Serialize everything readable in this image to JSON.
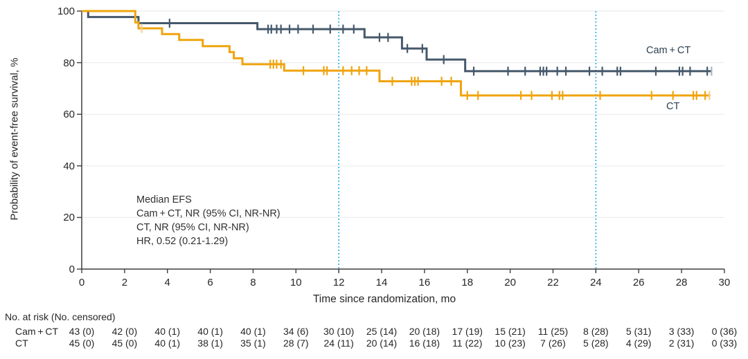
{
  "chart_data": {
    "type": "line",
    "subtype": "kaplan-meier-step",
    "title": "",
    "xlabel": "Time since randomization, mo",
    "ylabel": "Probability of event-free survival, %",
    "xlim": [
      0,
      30
    ],
    "ylim": [
      0,
      100
    ],
    "x_ticks": [
      0,
      2,
      4,
      6,
      8,
      10,
      12,
      14,
      16,
      18,
      20,
      22,
      24,
      26,
      28,
      30
    ],
    "y_ticks": [
      0,
      20,
      40,
      60,
      80,
      100
    ],
    "grid": "horizontal-light",
    "legend_position": "right-of-curves",
    "reference_lines_x": [
      12,
      24
    ],
    "annotation": {
      "lines": [
        "Median EFS",
        "Cam + CT, NR (95% CI, NR-NR)",
        "CT, NR (95% CI, NR-NR)",
        "HR, 0.52 (0.21-1.29)"
      ]
    },
    "series": [
      {
        "name": "Cam + CT",
        "color": "#45586B",
        "light_color": "#A9B6C0",
        "end_month": 29.4,
        "steps": [
          [
            0,
            100
          ],
          [
            0.3,
            97.7
          ],
          [
            2.65,
            95.3
          ],
          [
            8.2,
            93
          ],
          [
            13.2,
            89.8
          ],
          [
            14.95,
            85.5
          ],
          [
            16.1,
            81.2
          ],
          [
            17.9,
            76.7
          ]
        ],
        "censor_marks": [
          [
            4.1,
            95.3
          ],
          [
            8.7,
            93
          ],
          [
            8.85,
            93
          ],
          [
            9.1,
            93
          ],
          [
            9.3,
            93
          ],
          [
            9.7,
            93
          ],
          [
            10.1,
            93
          ],
          [
            10.8,
            93
          ],
          [
            11.6,
            93
          ],
          [
            12.2,
            93
          ],
          [
            12.7,
            93
          ],
          [
            13.9,
            89.8
          ],
          [
            14.3,
            89.8
          ],
          [
            15.2,
            85.5
          ],
          [
            15.9,
            85.5
          ],
          [
            16.9,
            81.2
          ],
          [
            18.3,
            76.7
          ],
          [
            19.9,
            76.7
          ],
          [
            20.7,
            76.7
          ],
          [
            21.4,
            76.7
          ],
          [
            21.55,
            76.7
          ],
          [
            21.7,
            76.7
          ],
          [
            22.2,
            76.7
          ],
          [
            22.6,
            76.7
          ],
          [
            23.7,
            76.7
          ],
          [
            24.3,
            76.7
          ],
          [
            25.0,
            76.7
          ],
          [
            25.15,
            76.7
          ],
          [
            26.8,
            76.7
          ],
          [
            27.9,
            76.7
          ],
          [
            28.05,
            76.7
          ],
          [
            28.4,
            76.7
          ],
          [
            29.2,
            76.7
          ]
        ],
        "censor_marks_light": [
          [
            29.4,
            76.7
          ]
        ]
      },
      {
        "name": "CT",
        "color": "#EFA40E",
        "light_color": "#F8CE8B",
        "end_month": 29.35,
        "steps": [
          [
            0,
            100
          ],
          [
            2.5,
            95.6
          ],
          [
            2.65,
            93.3
          ],
          [
            3.75,
            91.1
          ],
          [
            4.55,
            88.8
          ],
          [
            5.65,
            86.4
          ],
          [
            6.9,
            84.1
          ],
          [
            7.1,
            81.7
          ],
          [
            7.5,
            79.4
          ],
          [
            9.45,
            76.9
          ],
          [
            13.9,
            72.8
          ],
          [
            17.7,
            67.3
          ]
        ],
        "censor_marks": [
          [
            8.8,
            79.4
          ],
          [
            8.95,
            79.4
          ],
          [
            9.1,
            79.4
          ],
          [
            9.3,
            79.4
          ],
          [
            10.35,
            76.9
          ],
          [
            11.3,
            76.9
          ],
          [
            11.45,
            76.9
          ],
          [
            12.2,
            76.9
          ],
          [
            12.6,
            76.9
          ],
          [
            12.95,
            76.9
          ],
          [
            13.3,
            76.9
          ],
          [
            14.5,
            72.8
          ],
          [
            15.4,
            72.8
          ],
          [
            15.55,
            72.8
          ],
          [
            15.7,
            72.8
          ],
          [
            16.8,
            72.8
          ],
          [
            17.25,
            72.8
          ],
          [
            18.0,
            67.3
          ],
          [
            18.5,
            67.3
          ],
          [
            20.5,
            67.3
          ],
          [
            21.0,
            67.3
          ],
          [
            21.95,
            67.3
          ],
          [
            22.3,
            67.3
          ],
          [
            22.45,
            67.3
          ],
          [
            24.2,
            67.3
          ],
          [
            26.6,
            67.3
          ],
          [
            27.6,
            67.3
          ],
          [
            28.55,
            67.3
          ],
          [
            28.7,
            67.3
          ],
          [
            29.1,
            67.3
          ]
        ],
        "censor_marks_light": [
          [
            2.8,
            93.3
          ],
          [
            29.3,
            67.3
          ]
        ]
      }
    ]
  },
  "risk_table": {
    "header": "No. at risk (No. censored)",
    "months": [
      0,
      2,
      4,
      6,
      8,
      10,
      12,
      14,
      16,
      18,
      20,
      22,
      24,
      26,
      28,
      30
    ],
    "rows": [
      {
        "label": "Cam + CT",
        "values": [
          "43 (0)",
          "42 (0)",
          "40 (1)",
          "40 (1)",
          "40 (1)",
          "34 (6)",
          "30 (10)",
          "25 (14)",
          "20 (18)",
          "17 (19)",
          "15 (21)",
          "11 (25)",
          "8 (28)",
          "5 (31)",
          "3 (33)",
          "0 (36)"
        ]
      },
      {
        "label": "CT",
        "values": [
          "45 (0)",
          "45 (0)",
          "40 (1)",
          "38 (1)",
          "35 (1)",
          "28 (7)",
          "24 (11)",
          "20 (14)",
          "16 (18)",
          "11 (22)",
          "10 (23)",
          "7 (26)",
          "5 (28)",
          "4 (29)",
          "2 (31)",
          "0 (33)"
        ]
      }
    ]
  },
  "colors": {
    "axis": "#3D3D3D",
    "grid": "#ECECEC",
    "text": "#262626",
    "reference_line": "#36B3E8",
    "cam_ct_series": "#45586B",
    "ct_series": "#EFA40E"
  }
}
